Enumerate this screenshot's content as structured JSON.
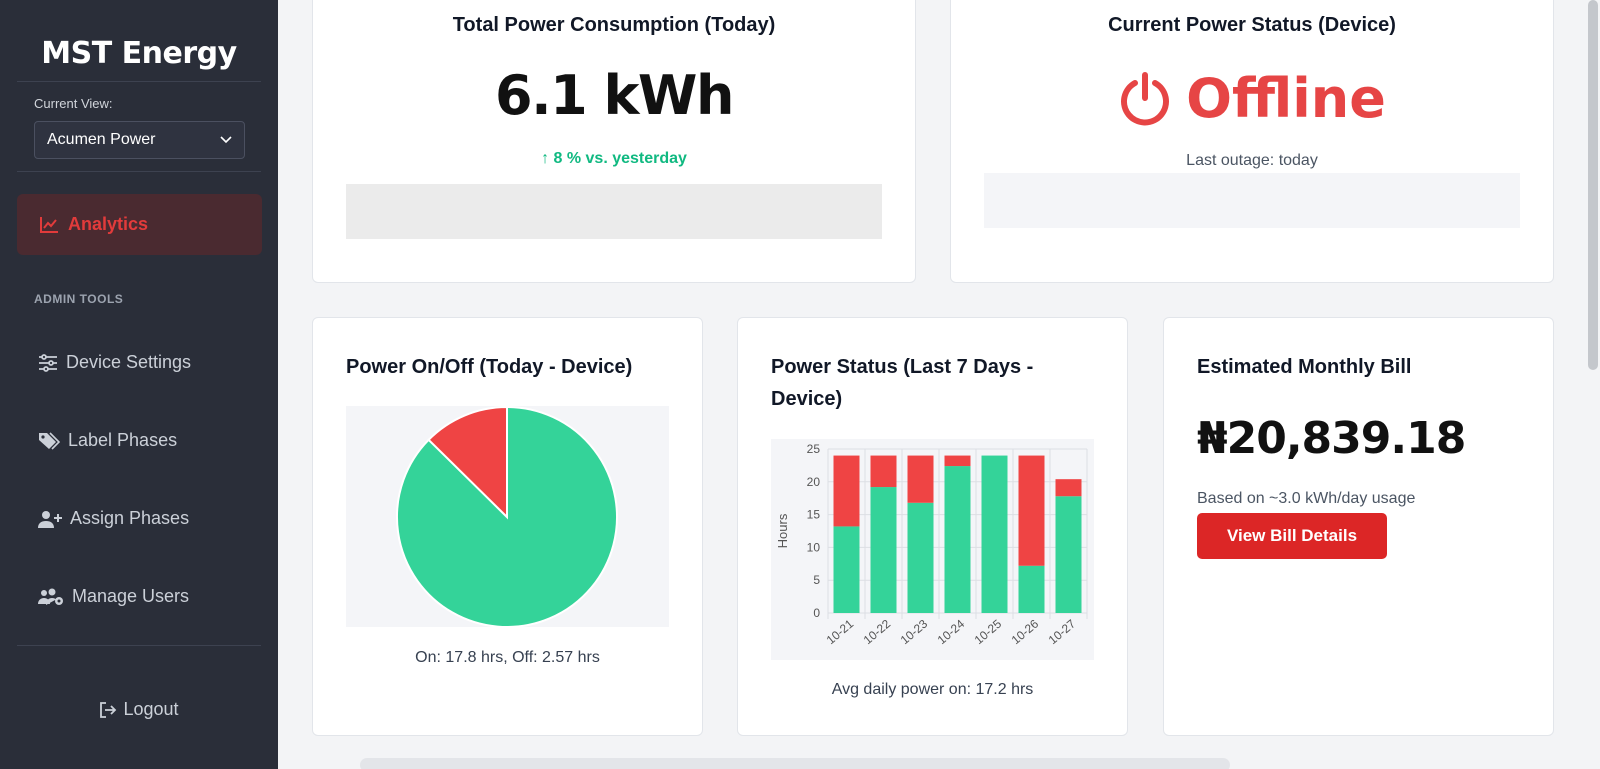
{
  "sidebar": {
    "brand": "MST Energy",
    "current_view_label": "Current View:",
    "current_view_value": "Acumen Power",
    "active_item": "Analytics",
    "section_label": "ADMIN TOOLS",
    "items": [
      {
        "label": "Device Settings",
        "icon": "sliders-icon"
      },
      {
        "label": "Label Phases",
        "icon": "tags-icon"
      },
      {
        "label": "Assign Phases",
        "icon": "user-plus-icon"
      },
      {
        "label": "Manage Users",
        "icon": "users-cog-icon"
      }
    ],
    "logout": "Logout"
  },
  "consumption": {
    "title": "Total Power Consumption (Today)",
    "value": "6.1 kWh",
    "delta": "↑ 8 % vs. yesterday"
  },
  "status": {
    "title": "Current Power Status (Device)",
    "value": "Offline",
    "last_outage": "Last outage: today"
  },
  "pie_card": {
    "title": "Power On/Off (Today - Device)",
    "caption": "On: 17.8 hrs, Off: 2.57 hrs"
  },
  "bar_card": {
    "title": "Power Status (Last 7 Days - Device)",
    "caption": "Avg daily power on: 17.2 hrs"
  },
  "bill": {
    "title": "Estimated Monthly Bill",
    "amount": "₦20,839.18",
    "basis": "Based on ~3.0 kWh/day usage",
    "button": "View Bill Details"
  },
  "colors": {
    "on": "#34d399",
    "off": "#ef4444",
    "accent": "#dc2626"
  },
  "chart_data": [
    {
      "type": "pie",
      "labels": [
        "On",
        "Off"
      ],
      "values": [
        17.8,
        2.57
      ],
      "colors": [
        "#34d399",
        "#ef4444"
      ]
    },
    {
      "type": "bar",
      "stacked": true,
      "categories": [
        "10-21",
        "10-22",
        "10-23",
        "10-24",
        "10-25",
        "10-26",
        "10-27"
      ],
      "series": [
        {
          "values": [
            13.2,
            19.2,
            16.8,
            22.4,
            24,
            7.2,
            17.8
          ],
          "color": "#34d399"
        },
        {
          "values": [
            10.8,
            4.8,
            7.2,
            1.6,
            0,
            16.8,
            2.6
          ],
          "color": "#ef4444"
        }
      ],
      "ylabel": "Hours",
      "ylim": [
        0,
        25
      ],
      "yticks": [
        0,
        5,
        10,
        15,
        20,
        25
      ],
      "grid": true
    }
  ]
}
